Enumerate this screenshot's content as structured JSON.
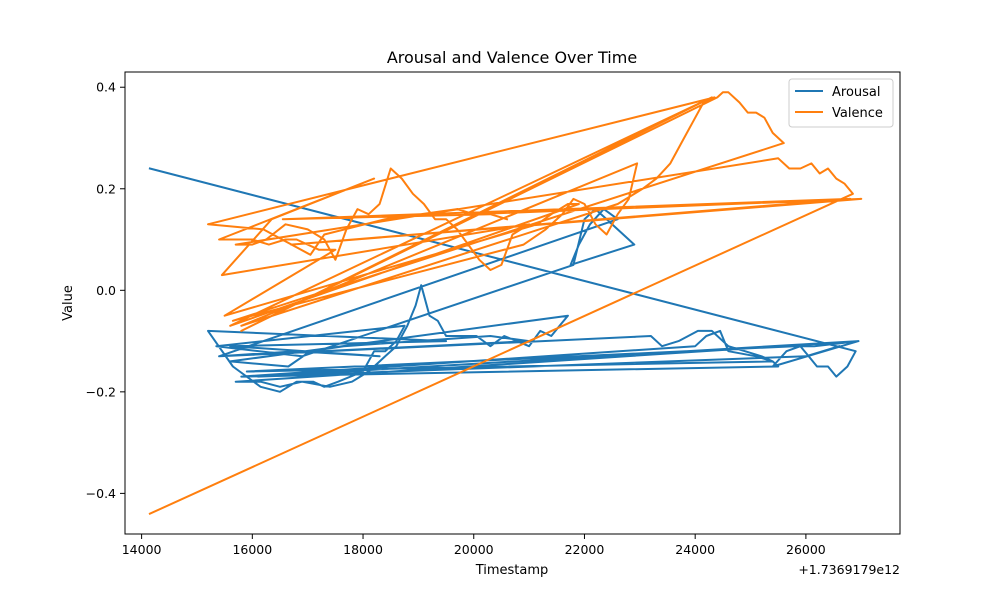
{
  "chart_data": {
    "type": "line",
    "title": "Arousal and Valence Over Time",
    "xlabel": "Timestamp",
    "ylabel": "Value",
    "x_offset_label": "+1.7369179e12",
    "xlim": [
      13700,
      27700
    ],
    "ylim": [
      -0.48,
      0.43
    ],
    "x_ticks": [
      14000,
      16000,
      18000,
      20000,
      22000,
      24000,
      26000
    ],
    "x_tick_labels": [
      "14000",
      "16000",
      "18000",
      "20000",
      "22000",
      "24000",
      "26000"
    ],
    "y_ticks": [
      -0.4,
      -0.2,
      0.0,
      0.2,
      0.4
    ],
    "y_tick_labels": [
      "−0.4",
      "−0.2",
      "0.0",
      "0.2",
      "0.4"
    ],
    "grid": false,
    "legend_position": "top-right",
    "series": [
      {
        "name": "Arousal",
        "color": "#1f77b4",
        "points": [
          [
            14150,
            0.24
          ],
          [
            26900,
            -0.12
          ],
          [
            26750,
            -0.15
          ],
          [
            26550,
            -0.17
          ],
          [
            26400,
            -0.15
          ],
          [
            26200,
            -0.15
          ],
          [
            26050,
            -0.13
          ],
          [
            25900,
            -0.11
          ],
          [
            25650,
            -0.12
          ],
          [
            25400,
            -0.15
          ],
          [
            26950,
            -0.1
          ],
          [
            15700,
            -0.18
          ],
          [
            16150,
            -0.18
          ],
          [
            16500,
            -0.19
          ],
          [
            16900,
            -0.18
          ],
          [
            17400,
            -0.19
          ],
          [
            17800,
            -0.18
          ],
          [
            18100,
            -0.16
          ],
          [
            18400,
            -0.13
          ],
          [
            18600,
            -0.11
          ],
          [
            18800,
            -0.07
          ],
          [
            18950,
            -0.03
          ],
          [
            19050,
            0.01
          ],
          [
            19200,
            -0.05
          ],
          [
            19350,
            -0.06
          ],
          [
            19500,
            -0.09
          ],
          [
            20050,
            -0.09
          ],
          [
            20300,
            -0.11
          ],
          [
            20550,
            -0.09
          ],
          [
            21000,
            -0.11
          ],
          [
            21200,
            -0.08
          ],
          [
            21400,
            -0.09
          ],
          [
            21550,
            -0.07
          ],
          [
            21700,
            -0.05
          ],
          [
            15600,
            -0.14
          ],
          [
            16650,
            -0.15
          ],
          [
            17050,
            -0.12
          ],
          [
            17650,
            -0.11
          ],
          [
            20300,
            -0.09
          ],
          [
            21000,
            -0.1
          ],
          [
            15400,
            -0.13
          ],
          [
            16800,
            -0.12
          ],
          [
            18300,
            -0.13
          ],
          [
            15600,
            -0.11
          ],
          [
            19500,
            -0.1
          ],
          [
            15200,
            -0.08
          ],
          [
            15650,
            -0.15
          ],
          [
            16150,
            -0.19
          ],
          [
            16500,
            -0.2
          ],
          [
            16800,
            -0.18
          ],
          [
            17100,
            -0.18
          ],
          [
            17300,
            -0.19
          ],
          [
            17550,
            -0.18
          ],
          [
            18000,
            -0.16
          ],
          [
            18200,
            -0.12
          ],
          [
            18400,
            -0.12
          ],
          [
            18600,
            -0.1
          ],
          [
            18750,
            -0.07
          ],
          [
            15350,
            -0.11
          ],
          [
            16900,
            -0.13
          ],
          [
            21800,
            0.05
          ],
          [
            22000,
            0.14
          ],
          [
            22200,
            0.16
          ],
          [
            22400,
            0.14
          ],
          [
            22900,
            0.09
          ],
          [
            21750,
            0.05
          ],
          [
            21900,
            0.09
          ],
          [
            22100,
            0.13
          ],
          [
            22350,
            0.16
          ],
          [
            22600,
            0.14
          ],
          [
            15400,
            -0.13
          ],
          [
            23200,
            -0.09
          ],
          [
            23400,
            -0.11
          ],
          [
            23700,
            -0.1
          ],
          [
            24050,
            -0.08
          ],
          [
            24300,
            -0.08
          ],
          [
            24600,
            -0.11
          ],
          [
            24900,
            -0.12
          ],
          [
            25200,
            -0.13
          ],
          [
            25400,
            -0.14
          ],
          [
            25500,
            -0.15
          ],
          [
            15800,
            -0.17
          ],
          [
            24000,
            -0.11
          ],
          [
            24200,
            -0.09
          ],
          [
            24450,
            -0.08
          ],
          [
            24600,
            -0.12
          ],
          [
            25100,
            -0.13
          ],
          [
            25400,
            -0.14
          ],
          [
            15900,
            -0.16
          ],
          [
            25800,
            -0.11
          ],
          [
            26150,
            -0.11
          ],
          [
            26950,
            -0.1
          ],
          [
            16100,
            -0.17
          ],
          [
            26000,
            -0.13
          ],
          [
            26600,
            -0.11
          ]
        ]
      },
      {
        "name": "Valence",
        "color": "#ff7f0e",
        "points": [
          [
            14150,
            -0.44
          ],
          [
            26850,
            0.19
          ],
          [
            26700,
            0.21
          ],
          [
            26550,
            0.22
          ],
          [
            26400,
            0.24
          ],
          [
            26250,
            0.23
          ],
          [
            26100,
            0.25
          ],
          [
            25900,
            0.24
          ],
          [
            25700,
            0.24
          ],
          [
            25500,
            0.26
          ],
          [
            15700,
            0.09
          ],
          [
            16000,
            0.09
          ],
          [
            16250,
            0.1
          ],
          [
            16600,
            0.13
          ],
          [
            17000,
            0.12
          ],
          [
            17300,
            0.1
          ],
          [
            17500,
            0.06
          ],
          [
            17700,
            0.12
          ],
          [
            17900,
            0.16
          ],
          [
            18100,
            0.15
          ],
          [
            18300,
            0.17
          ],
          [
            18500,
            0.24
          ],
          [
            18700,
            0.22
          ],
          [
            18900,
            0.19
          ],
          [
            19100,
            0.17
          ],
          [
            19300,
            0.14
          ],
          [
            19500,
            0.14
          ],
          [
            19700,
            0.12
          ],
          [
            19900,
            0.09
          ],
          [
            20100,
            0.06
          ],
          [
            20300,
            0.04
          ],
          [
            20500,
            0.05
          ],
          [
            20700,
            0.11
          ],
          [
            21000,
            0.13
          ],
          [
            15450,
            0.03
          ],
          [
            16350,
            0.14
          ],
          [
            18200,
            0.22
          ],
          [
            15400,
            0.1
          ],
          [
            16000,
            0.1
          ],
          [
            16300,
            0.09
          ],
          [
            16600,
            0.1
          ],
          [
            16800,
            0.1
          ],
          [
            17000,
            0.09
          ],
          [
            17200,
            0.08
          ],
          [
            17500,
            0.08
          ],
          [
            15500,
            -0.05
          ],
          [
            21150,
            0.13
          ],
          [
            21400,
            0.15
          ],
          [
            21700,
            0.17
          ],
          [
            21900,
            0.17
          ],
          [
            15600,
            -0.07
          ],
          [
            24300,
            0.38
          ],
          [
            15800,
            -0.08
          ],
          [
            24400,
            0.38
          ],
          [
            24500,
            0.39
          ],
          [
            24600,
            0.39
          ],
          [
            24800,
            0.37
          ],
          [
            24950,
            0.35
          ],
          [
            25100,
            0.35
          ],
          [
            25250,
            0.34
          ],
          [
            25400,
            0.31
          ],
          [
            25600,
            0.29
          ],
          [
            15650,
            -0.06
          ],
          [
            20900,
            0.09
          ],
          [
            21300,
            0.12
          ],
          [
            21600,
            0.15
          ],
          [
            21800,
            0.18
          ],
          [
            22000,
            0.17
          ],
          [
            22200,
            0.13
          ],
          [
            22400,
            0.11
          ],
          [
            22600,
            0.15
          ],
          [
            22800,
            0.18
          ],
          [
            22950,
            0.25
          ],
          [
            15800,
            -0.07
          ],
          [
            22600,
            0.17
          ],
          [
            23050,
            0.2
          ],
          [
            23300,
            0.22
          ],
          [
            23550,
            0.25
          ],
          [
            23750,
            0.29
          ],
          [
            23950,
            0.33
          ],
          [
            24150,
            0.37
          ],
          [
            24350,
            0.38
          ],
          [
            15200,
            0.13
          ],
          [
            16200,
            0.12
          ],
          [
            17050,
            0.07
          ],
          [
            17300,
            0.11
          ],
          [
            18400,
            0.14
          ],
          [
            19700,
            0.16
          ],
          [
            20000,
            0.15
          ],
          [
            27000,
            0.18
          ],
          [
            16700,
            0.09
          ],
          [
            26800,
            0.18
          ],
          [
            16550,
            0.14
          ],
          [
            20300,
            0.15
          ],
          [
            20600,
            0.14
          ]
        ]
      }
    ]
  }
}
